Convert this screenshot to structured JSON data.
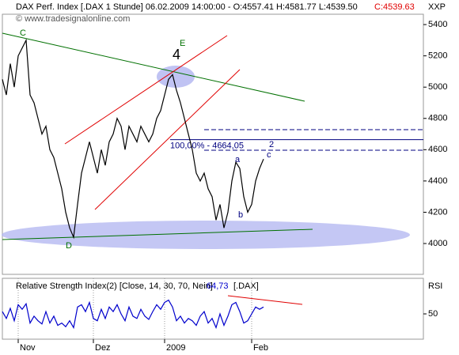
{
  "chart_data": [
    {
      "type": "line",
      "title": "DAX Perf. Index [.DAX  1 Stunde] 06.02.2009 14:00:00 - O:4557.41 H:4581.77 L:4539.50",
      "close_label": "C:4539.63",
      "axis_label": "XXP",
      "watermark": "© www.tradesignalonline.com",
      "annotations": [
        "C",
        "D",
        "E",
        "4",
        "a",
        "b",
        "c",
        "2"
      ],
      "levels": [
        {
          "value": 4664.05,
          "label": "100,00% - 4664,05"
        }
      ],
      "categories": [
        null,
        null,
        null,
        null,
        "Nov",
        null,
        null,
        null,
        null,
        null,
        null,
        null,
        null,
        null,
        null,
        null,
        null,
        null,
        null,
        null,
        null,
        null,
        null,
        "Dez",
        null,
        null,
        null,
        null,
        null,
        null,
        null,
        null,
        null,
        null,
        null,
        null,
        null,
        null,
        null,
        null,
        null,
        "2009",
        null,
        null,
        null,
        null,
        null,
        null,
        null,
        null,
        null,
        null,
        null,
        null,
        null,
        null,
        null,
        null,
        null,
        null,
        null,
        null,
        null,
        "Feb",
        null,
        null,
        null
      ],
      "series": [
        {
          "name": "DAX",
          "color": "#000000",
          "values": [
            5050,
            4950,
            5150,
            5000,
            5200,
            5250,
            5300,
            4950,
            4900,
            4800,
            4700,
            4750,
            4600,
            4550,
            4450,
            4350,
            4200,
            4100,
            4040,
            4250,
            4450,
            4550,
            4650,
            4550,
            4450,
            4600,
            4500,
            4650,
            4700,
            4800,
            4750,
            4600,
            4750,
            4700,
            4650,
            4750,
            4700,
            4650,
            4700,
            4800,
            4850,
            4950,
            5050,
            5080,
            4980,
            4900,
            4800,
            4700,
            4600,
            4450,
            4400,
            4450,
            4350,
            4300,
            4150,
            4250,
            4100,
            4200,
            4400,
            4520,
            4480,
            4300,
            4200,
            4250,
            4400,
            4480,
            4540
          ]
        }
      ],
      "ylim": [
        3813,
        5456
      ],
      "yticks": [
        4000,
        4200,
        4400,
        4600,
        4800,
        5000,
        5200,
        5400
      ]
    },
    {
      "type": "line",
      "title": "Relative Strength Index(2) [Close, 14, 30, 70, Nein]",
      "last_label": "64,73",
      "symbol": "[.DAX]",
      "axis_label": "RSI",
      "series": [
        {
          "name": "RSI",
          "color": "#0000cc",
          "values": [
            55,
            40,
            62,
            35,
            70,
            60,
            72,
            30,
            45,
            35,
            28,
            55,
            30,
            45,
            25,
            30,
            22,
            35,
            20,
            65,
            70,
            55,
            75,
            40,
            35,
            60,
            40,
            65,
            55,
            70,
            50,
            35,
            65,
            45,
            40,
            60,
            45,
            38,
            55,
            70,
            60,
            75,
            80,
            65,
            35,
            45,
            30,
            40,
            35,
            25,
            45,
            55,
            30,
            40,
            20,
            50,
            25,
            45,
            70,
            75,
            55,
            30,
            35,
            50,
            65,
            60,
            65
          ]
        }
      ],
      "ylim": [
        0,
        100
      ],
      "yticks": [
        50
      ]
    }
  ]
}
